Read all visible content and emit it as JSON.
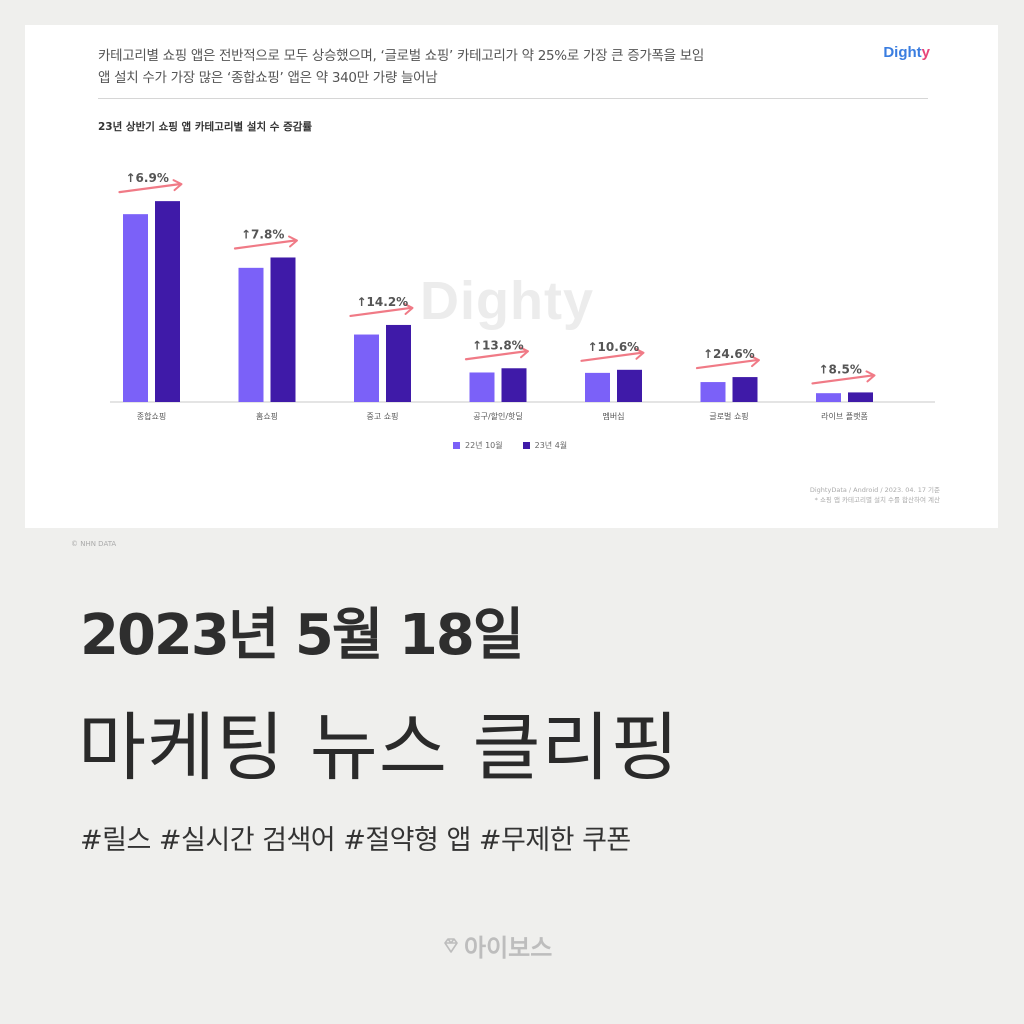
{
  "card": {
    "headline_line1": "카테고리별 쇼핑 앱은 전반적으로 모두 상승했으며, ‘글로벌 쇼핑’ 카테고리가 약 25%로 가장 큰 증가폭을 보임",
    "headline_line2": "앱 설치 수가 가장 많은 ‘종합쇼핑’ 앱은 약 340만 가량 늘어남",
    "brand_main": "Dight",
    "brand_tail": "y",
    "watermark": "Dighty",
    "source_line1": "DightyData / Android / 2023. 04. 17 기준",
    "source_line2": "* 쇼핑 앱 카테고리별 설치 수를 합산하여 계산",
    "nhn_label": "© NHN DATA"
  },
  "chart_data": {
    "type": "bar",
    "title": "23년 상반기 쇼핑 앱 카테고리별 설치 수 증감률",
    "categories": [
      "종합쇼핑",
      "홈쇼핑",
      "중고 쇼핑",
      "공구/할인/핫딜",
      "멤버십",
      "글로벌 쇼핑",
      "라이브 플랫폼"
    ],
    "series": [
      {
        "name": "22년 10월",
        "color": "#7b61f8",
        "values": [
          49,
          35,
          17.6,
          7.7,
          7.6,
          5.2,
          2.3
        ]
      },
      {
        "name": "23년 4월",
        "color": "#3f1aa8",
        "values": [
          52.4,
          37.7,
          20.1,
          8.8,
          8.4,
          6.5,
          2.5
        ]
      }
    ],
    "growth_labels": [
      "↑6.9%",
      "↑7.8%",
      "↑14.2%",
      "↑13.8%",
      "↑10.6%",
      "↑24.6%",
      "↑8.5%"
    ],
    "ylim": [
      0,
      60
    ],
    "legend": "bottom-center",
    "arrow_color": "#f07a86"
  },
  "page": {
    "date": "2023년 5월 18일",
    "title": "마케팅 뉴스 클리핑",
    "tags": "#릴스 #실시간 검색어 #절약형 앱 #무제한 쿠폰",
    "logo_icon": "diamond-icon",
    "logo": "아이보스"
  }
}
